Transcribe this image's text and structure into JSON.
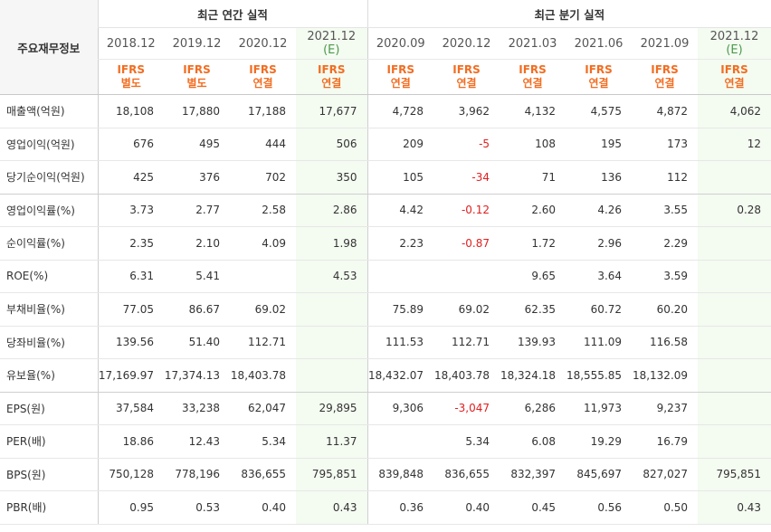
{
  "corner_label": "주요재무정보",
  "groups": {
    "annual": "최근 연간 실적",
    "quarterly": "최근 분기 실적"
  },
  "periods": [
    {
      "label": "2018.12",
      "est": "",
      "ifrs": "IFRS",
      "basis": "별도"
    },
    {
      "label": "2019.12",
      "est": "",
      "ifrs": "IFRS",
      "basis": "별도"
    },
    {
      "label": "2020.12",
      "est": "",
      "ifrs": "IFRS",
      "basis": "연결"
    },
    {
      "label": "2021.12",
      "est": "(E)",
      "ifrs": "IFRS",
      "basis": "연결"
    },
    {
      "label": "2020.09",
      "est": "",
      "ifrs": "IFRS",
      "basis": "연결"
    },
    {
      "label": "2020.12",
      "est": "",
      "ifrs": "IFRS",
      "basis": "연결"
    },
    {
      "label": "2021.03",
      "est": "",
      "ifrs": "IFRS",
      "basis": "연결"
    },
    {
      "label": "2021.06",
      "est": "",
      "ifrs": "IFRS",
      "basis": "연결"
    },
    {
      "label": "2021.09",
      "est": "",
      "ifrs": "IFRS",
      "basis": "연결"
    },
    {
      "label": "2021.12",
      "est": "(E)",
      "ifrs": "IFRS",
      "basis": "연결"
    }
  ],
  "rows": [
    {
      "label": "매출액(억원)",
      "values": [
        "18,108",
        "17,880",
        "17,188",
        "17,677",
        "4,728",
        "3,962",
        "4,132",
        "4,575",
        "4,872",
        "4,062"
      ]
    },
    {
      "label": "영업이익(억원)",
      "values": [
        "676",
        "495",
        "444",
        "506",
        "209",
        "-5",
        "108",
        "195",
        "173",
        "12"
      ]
    },
    {
      "label": "당기순이익(억원)",
      "values": [
        "425",
        "376",
        "702",
        "350",
        "105",
        "-34",
        "71",
        "136",
        "112",
        ""
      ]
    },
    {
      "label": "영업이익률(%)",
      "values": [
        "3.73",
        "2.77",
        "2.58",
        "2.86",
        "4.42",
        "-0.12",
        "2.60",
        "4.26",
        "3.55",
        "0.28"
      ]
    },
    {
      "label": "순이익률(%)",
      "values": [
        "2.35",
        "2.10",
        "4.09",
        "1.98",
        "2.23",
        "-0.87",
        "1.72",
        "2.96",
        "2.29",
        ""
      ]
    },
    {
      "label": "ROE(%)",
      "values": [
        "6.31",
        "5.41",
        "",
        "4.53",
        "",
        "",
        "9.65",
        "3.64",
        "3.59",
        ""
      ]
    },
    {
      "label": "부채비율(%)",
      "values": [
        "77.05",
        "86.67",
        "69.02",
        "",
        "75.89",
        "69.02",
        "62.35",
        "60.72",
        "60.20",
        ""
      ]
    },
    {
      "label": "당좌비율(%)",
      "values": [
        "139.56",
        "51.40",
        "112.71",
        "",
        "111.53",
        "112.71",
        "139.93",
        "111.09",
        "116.58",
        ""
      ]
    },
    {
      "label": "유보율(%)",
      "values": [
        "17,169.97",
        "17,374.13",
        "18,403.78",
        "",
        "18,432.07",
        "18,403.78",
        "18,324.18",
        "18,555.85",
        "18,132.09",
        ""
      ]
    },
    {
      "label": "EPS(원)",
      "values": [
        "37,584",
        "33,238",
        "62,047",
        "29,895",
        "9,306",
        "-3,047",
        "6,286",
        "11,973",
        "9,237",
        ""
      ]
    },
    {
      "label": "PER(배)",
      "values": [
        "18.86",
        "12.43",
        "5.34",
        "11.37",
        "",
        "5.34",
        "6.08",
        "19.29",
        "16.79",
        ""
      ]
    },
    {
      "label": "BPS(원)",
      "values": [
        "750,128",
        "778,196",
        "836,655",
        "795,851",
        "839,848",
        "836,655",
        "832,397",
        "845,697",
        "827,027",
        "795,851"
      ]
    },
    {
      "label": "PBR(배)",
      "values": [
        "0.95",
        "0.53",
        "0.40",
        "0.43",
        "0.36",
        "0.40",
        "0.45",
        "0.56",
        "0.50",
        "0.43"
      ]
    }
  ],
  "colors": {
    "ifrs": "#f26d21",
    "negative": "#e02020",
    "estimate_bg": "#f4fbf1",
    "corner_bg": "#f6f6f6"
  }
}
